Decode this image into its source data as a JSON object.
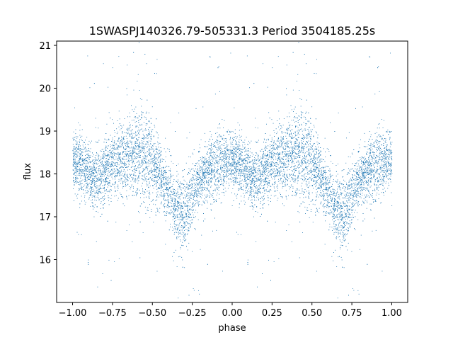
{
  "chart_data": {
    "type": "scatter",
    "title": "1SWASPJ140326.79-505331.3 Period 3504185.25s",
    "xlabel": "phase",
    "ylabel": "flux",
    "xlim": [
      -1.1,
      1.1
    ],
    "ylim": [
      15.0,
      21.1
    ],
    "xticks": [
      -1.0,
      -0.75,
      -0.5,
      -0.25,
      0.0,
      0.25,
      0.5,
      0.75,
      1.0
    ],
    "xtick_labels": [
      "−1.00",
      "−0.75",
      "−0.50",
      "−0.25",
      "0.00",
      "0.25",
      "0.50",
      "0.75",
      "1.00"
    ],
    "yticks": [
      16,
      17,
      18,
      19,
      20,
      21
    ],
    "ytick_labels": [
      "16",
      "17",
      "18",
      "19",
      "20",
      "21"
    ],
    "grid": false,
    "marker_color": "#1f77b4",
    "series": [
      {
        "profile": {
          "phase": [
            0.0,
            0.05,
            0.1,
            0.15,
            0.2,
            0.25,
            0.3,
            0.35,
            0.4,
            0.45,
            0.5,
            0.55,
            0.6,
            0.65,
            0.7,
            0.75,
            0.8,
            0.85,
            0.9,
            0.95,
            1.0
          ],
          "flux": [
            18.3,
            18.2,
            18.0,
            17.9,
            18.1,
            18.2,
            18.3,
            18.4,
            18.5,
            18.4,
            18.3,
            17.9,
            17.6,
            17.2,
            17.0,
            17.6,
            17.9,
            18.1,
            18.2,
            18.3,
            18.3
          ],
          "spread": [
            0.35,
            0.35,
            0.35,
            0.35,
            0.4,
            0.4,
            0.45,
            0.45,
            0.5,
            0.55,
            0.45,
            0.4,
            0.35,
            0.45,
            0.45,
            0.4,
            0.35,
            0.35,
            0.4,
            0.35,
            0.35
          ]
        }
      }
    ]
  }
}
